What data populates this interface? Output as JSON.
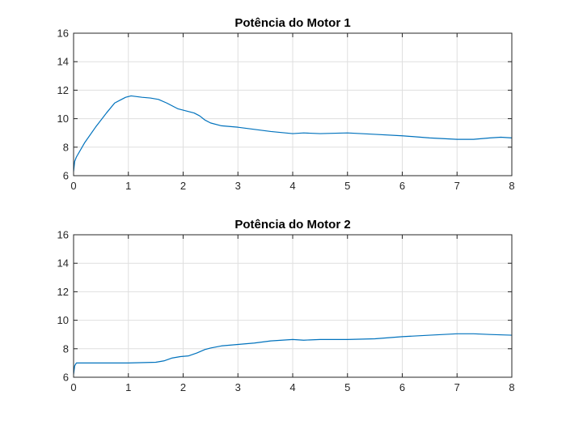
{
  "figure": {
    "background": "#ffffff"
  },
  "chart_data": [
    {
      "type": "line",
      "title": "Potência do Motor 1",
      "xlabel": "",
      "ylabel": "",
      "xlim": [
        0,
        8
      ],
      "ylim": [
        6,
        16
      ],
      "xticks": [
        0,
        1,
        2,
        3,
        4,
        5,
        6,
        7,
        8
      ],
      "yticks": [
        6,
        8,
        10,
        12,
        14,
        16
      ],
      "grid": true,
      "series": [
        {
          "color": "#0072bd",
          "x": [
            0,
            0.02,
            0.05,
            0.2,
            0.4,
            0.6,
            0.75,
            0.85,
            0.95,
            1.05,
            1.15,
            1.25,
            1.4,
            1.55,
            1.7,
            1.8,
            1.9,
            2.0,
            2.1,
            2.2,
            2.3,
            2.4,
            2.5,
            2.7,
            3.0,
            3.3,
            3.6,
            4.0,
            4.2,
            4.5,
            5.0,
            5.5,
            6.0,
            6.5,
            7.0,
            7.3,
            7.6,
            7.8,
            8.0
          ],
          "y": [
            6.3,
            7.0,
            7.3,
            8.3,
            9.4,
            10.4,
            11.1,
            11.3,
            11.5,
            11.6,
            11.55,
            11.5,
            11.45,
            11.35,
            11.1,
            10.9,
            10.7,
            10.6,
            10.5,
            10.4,
            10.2,
            9.9,
            9.7,
            9.5,
            9.4,
            9.25,
            9.1,
            8.95,
            9.0,
            8.95,
            9.0,
            8.9,
            8.8,
            8.65,
            8.55,
            8.55,
            8.65,
            8.7,
            8.65
          ]
        }
      ]
    },
    {
      "type": "line",
      "title": "Potência do Motor 2",
      "xlabel": "",
      "ylabel": "",
      "xlim": [
        0,
        8
      ],
      "ylim": [
        6,
        16
      ],
      "xticks": [
        0,
        1,
        2,
        3,
        4,
        5,
        6,
        7,
        8
      ],
      "yticks": [
        6,
        8,
        10,
        12,
        14,
        16
      ],
      "grid": true,
      "series": [
        {
          "color": "#0072bd",
          "x": [
            0,
            0.02,
            0.05,
            0.5,
            1.0,
            1.5,
            1.65,
            1.8,
            1.95,
            2.1,
            2.25,
            2.4,
            2.5,
            2.7,
            3.0,
            3.3,
            3.6,
            4.0,
            4.2,
            4.5,
            5.0,
            5.5,
            6.0,
            6.5,
            7.0,
            7.3,
            7.6,
            8.0
          ],
          "y": [
            6.2,
            6.8,
            7.0,
            7.0,
            7.0,
            7.05,
            7.15,
            7.35,
            7.45,
            7.5,
            7.7,
            7.95,
            8.05,
            8.2,
            8.3,
            8.4,
            8.55,
            8.65,
            8.6,
            8.65,
            8.65,
            8.7,
            8.85,
            8.95,
            9.05,
            9.05,
            9.0,
            8.95
          ]
        }
      ]
    }
  ]
}
